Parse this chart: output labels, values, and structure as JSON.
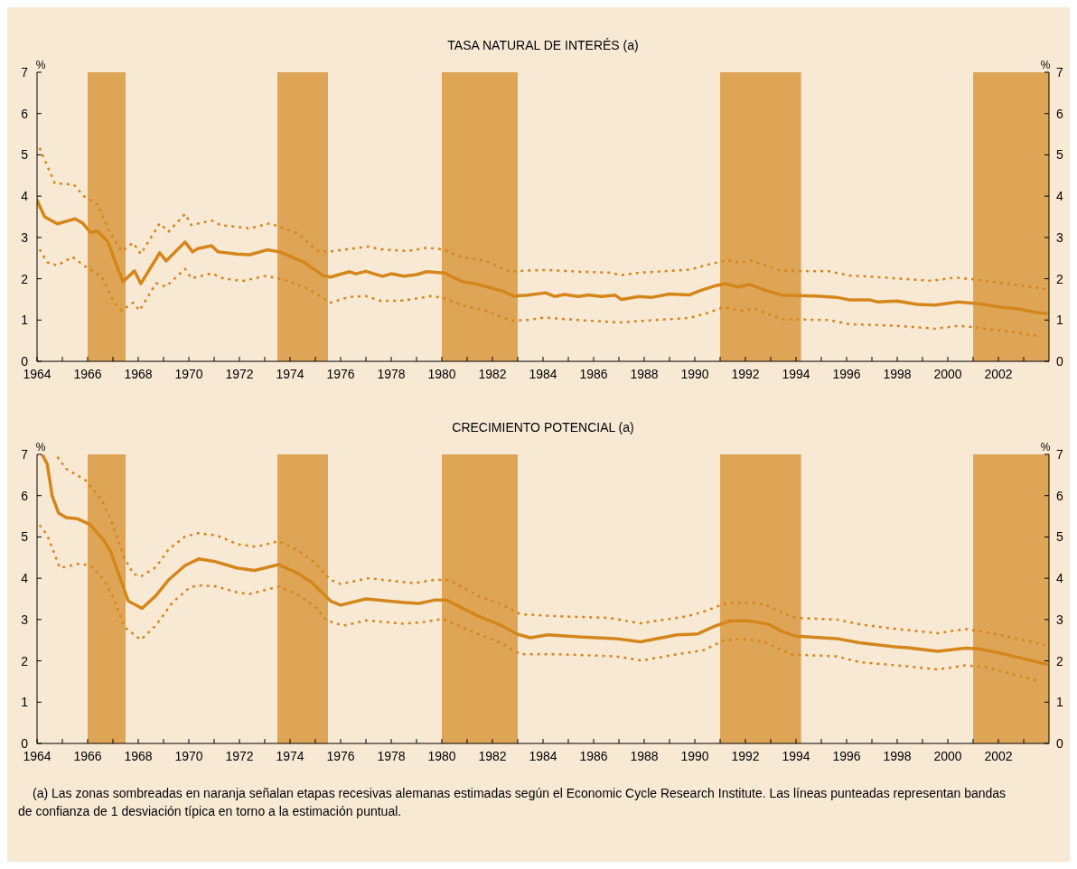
{
  "chart_data": [
    {
      "type": "line",
      "title": "TASA NATURAL DE INTERÉS (a)",
      "ylabel": "%",
      "y2label": "%",
      "xlim": [
        1964,
        2004
      ],
      "ylim": [
        0,
        7
      ],
      "y2lim": [
        0,
        7
      ],
      "xticks": [
        1964,
        {
          "value": 1965,
          "label": null
        },
        1966,
        {
          "value": 1967,
          "label": null
        },
        1968,
        {
          "value": 1969,
          "label": null
        },
        1970,
        {
          "value": 1971,
          "label": null
        },
        1972,
        {
          "value": 1973,
          "label": null
        },
        1974,
        {
          "value": 1975,
          "label": null
        },
        1976,
        {
          "value": 1977,
          "label": null
        },
        1978,
        {
          "value": 1979,
          "label": null
        },
        1980,
        {
          "value": 1981,
          "label": null
        },
        1982,
        {
          "value": 1983,
          "label": null
        },
        1984,
        {
          "value": 1985,
          "label": null
        },
        1986,
        {
          "value": 1987,
          "label": null
        },
        1988,
        {
          "value": 1989,
          "label": null
        },
        1990,
        {
          "value": 1991,
          "label": null
        },
        1992,
        {
          "value": 1993,
          "label": null
        },
        1994,
        {
          "value": 1995,
          "label": null
        },
        1996,
        {
          "value": 1997,
          "label": null
        },
        1998,
        {
          "value": 1999,
          "label": null
        },
        2000,
        {
          "value": 2001,
          "label": null
        },
        2002,
        {
          "value": 2003,
          "label": null
        }
      ],
      "yticks": [
        0,
        1,
        2,
        3,
        4,
        5,
        6,
        7
      ],
      "y2ticks": [
        0,
        1,
        2,
        3,
        4,
        5,
        6,
        7
      ],
      "bands": [
        {
          "axis": "x",
          "from": 1966,
          "to": 1967.5,
          "color": "#dfa557"
        },
        {
          "axis": "x",
          "from": 1973.5,
          "to": 1975.5,
          "color": "#dfa557"
        },
        {
          "axis": "x",
          "from": 1980,
          "to": 1983,
          "color": "#dfa557"
        },
        {
          "axis": "x",
          "from": 1991,
          "to": 1994.2,
          "color": "#dfa557"
        },
        {
          "axis": "x",
          "from": 2001,
          "to": 2004,
          "color": "#dfa557"
        }
      ],
      "series": [
        {
          "color": "#d4861a",
          "line_style": "solid",
          "x": [
            1964.0,
            1964.3,
            1964.8,
            1965.2,
            1965.5,
            1965.8,
            1966.1,
            1966.4,
            1966.8,
            1967.1,
            1967.4,
            1967.85,
            1968.1,
            1968.85,
            1969.1,
            1969.85,
            1970.15,
            1970.35,
            1970.9,
            1971.15,
            1971.9,
            1972.4,
            1973.1,
            1973.6,
            1974.55,
            1975.3,
            1975.6,
            1976.35,
            1976.6,
            1977.0,
            1977.65,
            1978.0,
            1978.5,
            1979.0,
            1979.4,
            1980.1,
            1980.8,
            1981.3,
            1982.4,
            1982.85,
            1983.4,
            1984.1,
            1984.45,
            1984.85,
            1985.4,
            1985.8,
            1986.3,
            1986.85,
            1987.1,
            1987.8,
            1988.3,
            1989.0,
            1989.8,
            1990.2,
            1990.75,
            1991.2,
            1991.7,
            1992.15,
            1992.8,
            1993.45,
            1994.8,
            1995.6,
            1996.1,
            1996.9,
            1997.2,
            1998.0,
            1998.8,
            1999.5,
            2000.4,
            2001.35,
            2002.0,
            2002.8,
            2003.5,
            2003.9
          ],
          "values": [
            3.9,
            3.5,
            3.33,
            3.4,
            3.45,
            3.35,
            3.13,
            3.15,
            2.9,
            2.4,
            1.93,
            2.19,
            1.88,
            2.63,
            2.43,
            2.89,
            2.65,
            2.73,
            2.8,
            2.65,
            2.6,
            2.58,
            2.7,
            2.65,
            2.4,
            2.08,
            2.04,
            2.17,
            2.12,
            2.18,
            2.06,
            2.12,
            2.06,
            2.1,
            2.17,
            2.14,
            1.93,
            1.88,
            1.7,
            1.58,
            1.6,
            1.66,
            1.57,
            1.62,
            1.57,
            1.61,
            1.57,
            1.6,
            1.5,
            1.57,
            1.55,
            1.63,
            1.61,
            1.71,
            1.82,
            1.88,
            1.8,
            1.86,
            1.72,
            1.6,
            1.58,
            1.55,
            1.49,
            1.49,
            1.44,
            1.46,
            1.38,
            1.36,
            1.44,
            1.39,
            1.32,
            1.27,
            1.18,
            1.16
          ]
        },
        {
          "color": "#d4861a",
          "line_style": "dotted",
          "x": [
            1964.1,
            1964.7,
            1965.45,
            1965.85,
            1966.4,
            1966.85,
            1967.35,
            1967.8,
            1968.1,
            1968.85,
            1969.2,
            1969.85,
            1970.1,
            1970.9,
            1971.25,
            1972.4,
            1973.2,
            1974.3,
            1975.1,
            1975.6,
            1977.1,
            1977.6,
            1978.65,
            1979.4,
            1980.05,
            1980.8,
            1981.7,
            1982.7,
            1983.4,
            1984.2,
            1985.4,
            1986.6,
            1987.1,
            1987.9,
            1989.8,
            1990.5,
            1991.3,
            1991.8,
            1992.2,
            1993.45,
            1995.3,
            1996.1,
            1997.45,
            1999.35,
            2000.3,
            2000.95,
            2002.7,
            2003.9
          ],
          "values": [
            5.17,
            4.31,
            4.28,
            4.0,
            3.8,
            3.14,
            2.67,
            2.87,
            2.6,
            3.34,
            3.14,
            3.57,
            3.3,
            3.41,
            3.3,
            3.22,
            3.34,
            3.1,
            2.67,
            2.66,
            2.78,
            2.71,
            2.67,
            2.75,
            2.71,
            2.52,
            2.44,
            2.17,
            2.2,
            2.21,
            2.17,
            2.15,
            2.09,
            2.15,
            2.22,
            2.34,
            2.45,
            2.39,
            2.44,
            2.19,
            2.18,
            2.08,
            2.03,
            1.95,
            2.03,
            1.99,
            1.85,
            1.75
          ]
        },
        {
          "color": "#d4861a",
          "line_style": "dotted",
          "x": [
            1964.1,
            1964.4,
            1964.8,
            1965.4,
            1965.85,
            1966.55,
            1967.05,
            1967.35,
            1967.8,
            1968.05,
            1968.7,
            1969.1,
            1969.85,
            1970.1,
            1970.9,
            1971.4,
            1972.15,
            1973.05,
            1973.8,
            1974.7,
            1975.6,
            1976.35,
            1977.0,
            1977.6,
            1978.5,
            1979.55,
            1980.05,
            1980.9,
            1981.7,
            1982.7,
            1983.4,
            1984.05,
            1985.4,
            1987.0,
            1987.9,
            1989.8,
            1990.5,
            1991.15,
            1991.8,
            1992.35,
            1993.45,
            1995.3,
            1996.1,
            1998.0,
            1999.5,
            2000.4,
            2001.1,
            2002.7,
            2003.65
          ],
          "values": [
            2.71,
            2.4,
            2.32,
            2.53,
            2.32,
            2.05,
            1.42,
            1.23,
            1.42,
            1.23,
            1.89,
            1.81,
            2.24,
            2.01,
            2.13,
            2.0,
            1.95,
            2.07,
            1.97,
            1.76,
            1.42,
            1.56,
            1.58,
            1.46,
            1.47,
            1.58,
            1.54,
            1.34,
            1.23,
            0.99,
            1.0,
            1.06,
            1.0,
            0.94,
            0.98,
            1.05,
            1.17,
            1.31,
            1.23,
            1.27,
            1.02,
            1.0,
            0.9,
            0.86,
            0.79,
            0.86,
            0.82,
            0.7,
            0.6
          ]
        }
      ]
    },
    {
      "type": "line",
      "title": "CRECIMIENTO POTENCIAL (a)",
      "ylabel": "%",
      "y2label": "%",
      "xlim": [
        1964,
        2004
      ],
      "ylim": [
        0,
        7
      ],
      "y2lim": [
        0,
        7
      ],
      "xticks": [
        1964,
        {
          "value": 1965,
          "label": null
        },
        1966,
        {
          "value": 1967,
          "label": null
        },
        1968,
        {
          "value": 1969,
          "label": null
        },
        1970,
        {
          "value": 1971,
          "label": null
        },
        1972,
        {
          "value": 1973,
          "label": null
        },
        1974,
        {
          "value": 1975,
          "label": null
        },
        1976,
        {
          "value": 1977,
          "label": null
        },
        1978,
        {
          "value": 1979,
          "label": null
        },
        1980,
        {
          "value": 1981,
          "label": null
        },
        1982,
        {
          "value": 1983,
          "label": null
        },
        1984,
        {
          "value": 1985,
          "label": null
        },
        1986,
        {
          "value": 1987,
          "label": null
        },
        1988,
        {
          "value": 1989,
          "label": null
        },
        1990,
        {
          "value": 1991,
          "label": null
        },
        1992,
        {
          "value": 1993,
          "label": null
        },
        1994,
        {
          "value": 1995,
          "label": null
        },
        1996,
        {
          "value": 1997,
          "label": null
        },
        1998,
        {
          "value": 1999,
          "label": null
        },
        2000,
        {
          "value": 2001,
          "label": null
        },
        2002,
        {
          "value": 2003,
          "label": null
        }
      ],
      "yticks": [
        0,
        1,
        2,
        3,
        4,
        5,
        6,
        7
      ],
      "y2ticks": [
        0,
        1,
        2,
        3,
        4,
        5,
        6,
        7
      ],
      "bands": [
        {
          "axis": "x",
          "from": 1966,
          "to": 1967.5,
          "color": "#dfa557"
        },
        {
          "axis": "x",
          "from": 1973.5,
          "to": 1975.5,
          "color": "#dfa557"
        },
        {
          "axis": "x",
          "from": 1980,
          "to": 1983,
          "color": "#dfa557"
        },
        {
          "axis": "x",
          "from": 1991,
          "to": 1994.2,
          "color": "#dfa557"
        },
        {
          "axis": "x",
          "from": 2001,
          "to": 2004,
          "color": "#dfa557"
        }
      ],
      "annotations": [
        "(a)    Las zonas sombreadas en naranja señalan etapas recesivas alemanas estimadas según el Economic Cycle Research Institute. Las líneas punteadas representan bandas de confianza de 1 desviación típica en torno a la estimación puntual."
      ],
      "series": [
        {
          "color": "#d4861a",
          "line_style": "solid",
          "x": [
            1964.2,
            1964.4,
            1964.6,
            1964.85,
            1965.15,
            1965.6,
            1966.1,
            1966.65,
            1966.9,
            1967.45,
            1967.6,
            1968.15,
            1968.7,
            1969.2,
            1969.85,
            1970.4,
            1971.0,
            1971.9,
            1972.6,
            1973.55,
            1974.3,
            1974.85,
            1975.6,
            1976.0,
            1977.0,
            1978.5,
            1979.1,
            1979.7,
            1980.2,
            1981.35,
            1982.35,
            1983.0,
            1983.5,
            1984.2,
            1985.4,
            1986.85,
            1987.85,
            1989.3,
            1990.1,
            1990.75,
            1991.4,
            1992.1,
            1992.9,
            1993.45,
            1994.0,
            1995.6,
            1996.5,
            1997.9,
            1998.4,
            1999.6,
            2000.7,
            2001.2,
            2002.0,
            2002.95,
            2003.9
          ],
          "values": [
            7.0,
            6.77,
            5.99,
            5.58,
            5.47,
            5.44,
            5.3,
            4.91,
            4.66,
            3.72,
            3.45,
            3.27,
            3.58,
            3.96,
            4.31,
            4.47,
            4.41,
            4.25,
            4.19,
            4.33,
            4.12,
            3.9,
            3.45,
            3.35,
            3.5,
            3.41,
            3.39,
            3.47,
            3.47,
            3.11,
            2.86,
            2.64,
            2.56,
            2.63,
            2.58,
            2.54,
            2.46,
            2.63,
            2.65,
            2.83,
            2.97,
            2.97,
            2.89,
            2.71,
            2.6,
            2.54,
            2.44,
            2.34,
            2.32,
            2.23,
            2.31,
            2.29,
            2.2,
            2.06,
            1.92
          ]
        },
        {
          "color": "#d4861a",
          "line_style": "dotted",
          "x": [
            1964.8,
            1965.15,
            1965.9,
            1966.55,
            1966.9,
            1967.45,
            1967.8,
            1968.1,
            1968.7,
            1969.2,
            1969.85,
            1970.35,
            1971.1,
            1971.9,
            1972.65,
            1973.55,
            1974.3,
            1974.95,
            1975.6,
            1976.0,
            1977.1,
            1978.9,
            1979.7,
            1980.3,
            1981.45,
            1982.35,
            1983.1,
            1984.6,
            1986.6,
            1987.85,
            1989.7,
            1990.35,
            1991.15,
            1991.95,
            1992.75,
            1993.45,
            1994.0,
            1995.6,
            1996.65,
            1998.0,
            1999.6,
            2000.7,
            2001.75,
            2003.9
          ],
          "values": [
            6.94,
            6.65,
            6.38,
            5.91,
            5.44,
            4.5,
            4.11,
            4.04,
            4.27,
            4.7,
            5.01,
            5.09,
            5.04,
            4.83,
            4.76,
            4.9,
            4.68,
            4.39,
            3.96,
            3.86,
            4.0,
            3.88,
            3.96,
            3.96,
            3.57,
            3.37,
            3.13,
            3.08,
            3.04,
            2.91,
            3.08,
            3.19,
            3.38,
            3.41,
            3.37,
            3.16,
            3.04,
            3.0,
            2.87,
            2.77,
            2.67,
            2.77,
            2.67,
            2.38
          ]
        },
        {
          "color": "#d4861a",
          "line_style": "dotted",
          "x": [
            1964.1,
            1964.4,
            1964.9,
            1965.65,
            1966.1,
            1966.65,
            1967.05,
            1967.45,
            1968.1,
            1968.7,
            1969.35,
            1970.0,
            1970.35,
            1971.1,
            1971.9,
            1972.4,
            1973.55,
            1974.3,
            1974.95,
            1975.45,
            1976.1,
            1977.0,
            1978.5,
            1979.3,
            1980.05,
            1981.35,
            1982.35,
            1983.1,
            1984.6,
            1986.85,
            1987.9,
            1989.3,
            1990.35,
            1991.15,
            1991.95,
            1992.75,
            1993.85,
            1995.6,
            1996.5,
            1998.0,
            1999.6,
            2000.7,
            2001.5,
            2003.65
          ],
          "values": [
            5.29,
            5.05,
            4.25,
            4.35,
            4.31,
            3.96,
            3.49,
            2.82,
            2.51,
            2.86,
            3.41,
            3.76,
            3.83,
            3.8,
            3.66,
            3.62,
            3.8,
            3.61,
            3.33,
            2.98,
            2.85,
            2.98,
            2.9,
            2.94,
            3.02,
            2.67,
            2.43,
            2.16,
            2.16,
            2.11,
            2.01,
            2.16,
            2.26,
            2.5,
            2.53,
            2.46,
            2.15,
            2.11,
            1.97,
            1.89,
            1.79,
            1.89,
            1.85,
            1.5
          ]
        }
      ]
    }
  ]
}
